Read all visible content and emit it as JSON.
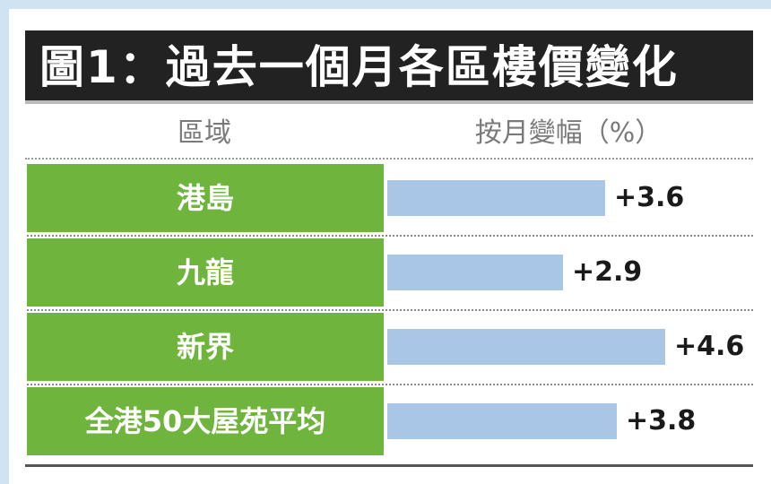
{
  "chart_data": {
    "type": "bar",
    "orientation": "horizontal",
    "title": "圖1：過去一個月各區樓價變化",
    "category_header": "區域",
    "value_header": "按月變幅（%）",
    "categories": [
      "港島",
      "九龍",
      "新界",
      "全港50大屋苑平均"
    ],
    "values": [
      3.6,
      2.9,
      4.6,
      3.8
    ],
    "value_labels": [
      "+3.6",
      "+2.9",
      "+4.6",
      "+3.8"
    ],
    "xlim": [
      0,
      6.05
    ],
    "grid": false,
    "legend": "none",
    "colors": {
      "label_bg": "#6fb43c",
      "bar": "#a9c6e6",
      "title_bg": "#222222"
    }
  }
}
